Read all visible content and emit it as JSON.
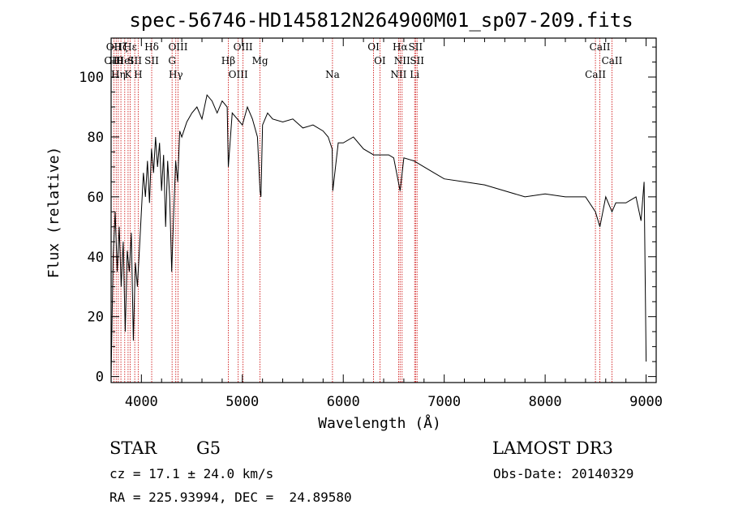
{
  "chart_data": {
    "type": "line",
    "title": "spec-56746-HD145812N264900M01_sp07-209.fits",
    "xlabel": "Wavelength (Å)",
    "ylabel": "Flux (relative)",
    "xlim": [
      3700,
      9100
    ],
    "ylim": [
      -2,
      113
    ],
    "xticks": [
      4000,
      5000,
      6000,
      7000,
      8000,
      9000
    ],
    "yticks": [
      0,
      20,
      40,
      60,
      80,
      100
    ],
    "series": [
      {
        "name": "spectrum",
        "x": [
          3700,
          3720,
          3740,
          3760,
          3780,
          3800,
          3820,
          3840,
          3860,
          3880,
          3900,
          3920,
          3940,
          3960,
          3980,
          4000,
          4020,
          4040,
          4060,
          4080,
          4100,
          4120,
          4140,
          4160,
          4180,
          4200,
          4220,
          4240,
          4260,
          4280,
          4300,
          4320,
          4340,
          4360,
          4380,
          4400,
          4450,
          4500,
          4550,
          4600,
          4650,
          4700,
          4750,
          4800,
          4850,
          4861,
          4900,
          4950,
          5000,
          5050,
          5100,
          5150,
          5175,
          5184,
          5200,
          5250,
          5300,
          5400,
          5500,
          5600,
          5700,
          5800,
          5850,
          5890,
          5896,
          5950,
          6000,
          6100,
          6200,
          6300,
          6400,
          6450,
          6500,
          6563,
          6600,
          6700,
          6800,
          6900,
          7000,
          7200,
          7400,
          7600,
          7800,
          8000,
          8200,
          8400,
          8498,
          8542,
          8600,
          8662,
          8700,
          8800,
          8900,
          8950,
          8980,
          9000
        ],
        "values": [
          0,
          40,
          55,
          35,
          50,
          30,
          45,
          15,
          42,
          35,
          48,
          12,
          38,
          30,
          42,
          55,
          68,
          60,
          72,
          58,
          76,
          68,
          80,
          70,
          78,
          62,
          74,
          50,
          72,
          60,
          35,
          55,
          72,
          65,
          82,
          80,
          85,
          88,
          90,
          86,
          94,
          92,
          88,
          92,
          90,
          70,
          88,
          86,
          84,
          90,
          86,
          80,
          62,
          60,
          84,
          88,
          86,
          85,
          86,
          83,
          84,
          82,
          80,
          76,
          62,
          78,
          78,
          80,
          76,
          74,
          74,
          74,
          73,
          62,
          73,
          72,
          70,
          68,
          66,
          65,
          64,
          62,
          60,
          61,
          60,
          60,
          55,
          50,
          60,
          55,
          58,
          58,
          60,
          52,
          65,
          5
        ],
        "color": "#000000"
      }
    ],
    "lines": [
      {
        "wavelength": 3727,
        "labels": [
          "OII",
          "OIII"
        ]
      },
      {
        "wavelength": 3750,
        "labels": [
          "Hθ"
        ]
      },
      {
        "wavelength": 3771,
        "labels": [
          "Hη"
        ]
      },
      {
        "wavelength": 3797,
        "labels": [
          "Hζ"
        ]
      },
      {
        "wavelength": 3835,
        "labels": [
          "HeI"
        ]
      },
      {
        "wavelength": 3868,
        "labels": [
          "K"
        ]
      },
      {
        "wavelength": 3889,
        "labels": [
          "Hε"
        ]
      },
      {
        "wavelength": 3934,
        "labels": [
          "SII"
        ]
      },
      {
        "wavelength": 3968,
        "labels": [
          "H"
        ]
      },
      {
        "wavelength": 4102,
        "labels": [
          "Hδ",
          "SII"
        ]
      },
      {
        "wavelength": 4304,
        "labels": [
          "G"
        ]
      },
      {
        "wavelength": 4341,
        "labels": [
          "Hγ"
        ]
      },
      {
        "wavelength": 4363,
        "labels": [
          "OIII"
        ]
      },
      {
        "wavelength": 4861,
        "labels": [
          "Hβ"
        ]
      },
      {
        "wavelength": 4959,
        "labels": [
          "OIII"
        ]
      },
      {
        "wavelength": 5007,
        "labels": [
          "OIII"
        ]
      },
      {
        "wavelength": 5175,
        "labels": [
          "Mg"
        ]
      },
      {
        "wavelength": 5893,
        "labels": [
          "Na"
        ]
      },
      {
        "wavelength": 6300,
        "labels": [
          "OI"
        ]
      },
      {
        "wavelength": 6363,
        "labels": [
          "OI"
        ]
      },
      {
        "wavelength": 6548,
        "labels": [
          "NII"
        ]
      },
      {
        "wavelength": 6563,
        "labels": [
          "Hα"
        ]
      },
      {
        "wavelength": 6583,
        "labels": [
          "NII"
        ]
      },
      {
        "wavelength": 6707,
        "labels": [
          "Li"
        ]
      },
      {
        "wavelength": 6716,
        "labels": [
          "SII"
        ]
      },
      {
        "wavelength": 6731,
        "labels": [
          "SII"
        ]
      },
      {
        "wavelength": 8498,
        "labels": [
          "CaII"
        ]
      },
      {
        "wavelength": 8542,
        "labels": [
          "CaII"
        ]
      },
      {
        "wavelength": 8662,
        "labels": [
          "CaII"
        ]
      }
    ],
    "line_color": "#cc0000"
  },
  "info": {
    "object_class": "STAR",
    "subclass": "G5",
    "survey": "LAMOST DR3",
    "redshift": "cz = 17.1 ± 24.0 km/s",
    "obs_date": "Obs-Date: 20140329",
    "coords": "RA = 225.93994, DEC =  24.89580"
  }
}
